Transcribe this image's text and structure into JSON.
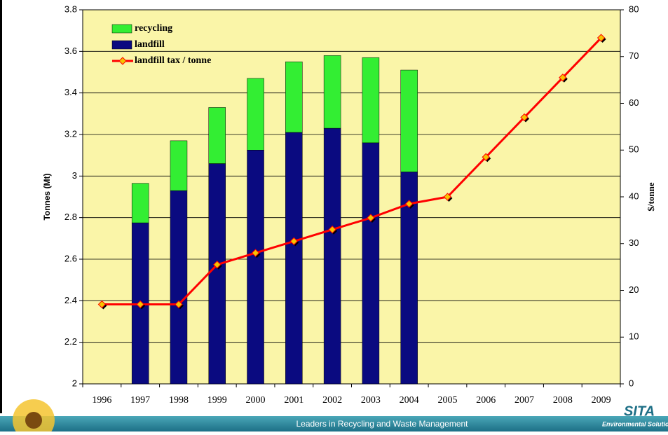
{
  "chart_data": {
    "type": "bar",
    "stacked": true,
    "categories": [
      "1996",
      "1997",
      "1998",
      "1999",
      "2000",
      "2001",
      "2002",
      "2003",
      "2004",
      "2005",
      "2006",
      "2007",
      "2008",
      "2009"
    ],
    "series": [
      {
        "name": "recycling",
        "color": "#33ee33",
        "type": "bar",
        "values": [
          null,
          0.19,
          0.24,
          0.27,
          0.345,
          0.34,
          0.35,
          0.41,
          0.49,
          null,
          null,
          null,
          null,
          null
        ]
      },
      {
        "name": "landfill",
        "color": "#0a0a80",
        "type": "bar",
        "values": [
          null,
          2.775,
          2.93,
          3.06,
          3.125,
          3.21,
          3.23,
          3.16,
          3.02,
          null,
          null,
          null,
          null,
          null
        ]
      },
      {
        "name": "landfill tax / tonne",
        "color": "#ff0000",
        "marker_color": "#f5c400",
        "type": "line",
        "axis": "y2",
        "values": [
          17,
          17,
          17,
          25.5,
          28,
          30.5,
          33,
          35.5,
          38.5,
          40,
          48.5,
          57,
          65.5,
          74
        ]
      }
    ],
    "ylabel": "Tonnes (Mt)",
    "y2label": "$/tonne",
    "ylim": [
      2,
      3.8
    ],
    "yticks": [
      2,
      2.2,
      2.4,
      2.6,
      2.8,
      3,
      3.2,
      3.4,
      3.6,
      3.8
    ],
    "y2lim": [
      0,
      80
    ],
    "y2ticks": [
      0,
      10,
      20,
      30,
      40,
      50,
      60,
      70,
      80
    ],
    "grid": true,
    "legend": "top-left",
    "background": "#faf5a8"
  },
  "footer": {
    "slogan": "Leaders in Recycling and Waste Management",
    "logo": "SITA",
    "logo_sub": "Environmental Solutions"
  }
}
